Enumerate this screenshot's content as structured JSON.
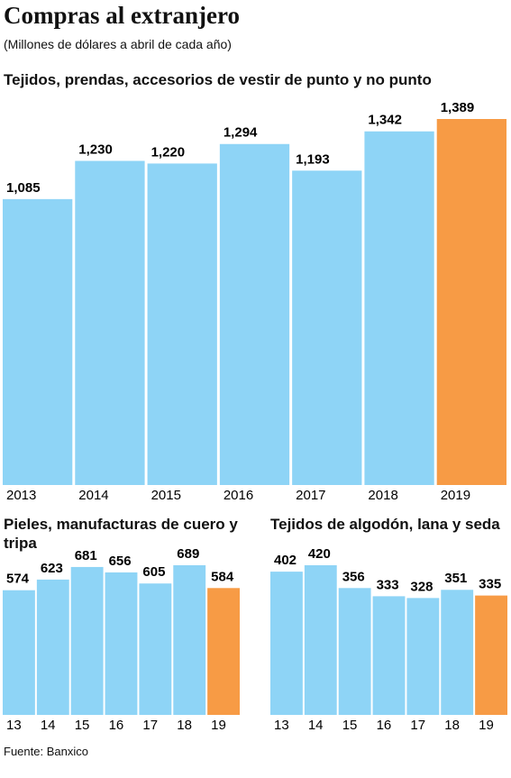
{
  "title": "Compras al extranjero",
  "subtitle": "(Millones de dólares a abril de cada año)",
  "source": "Fuente: Banxico",
  "chart_data": [
    {
      "type": "bar",
      "title": "Tejidos, prendas, accesorios de vestir de punto y no punto",
      "categories": [
        "2013",
        "2014",
        "2015",
        "2016",
        "2017",
        "2018",
        "2019"
      ],
      "values": [
        1085,
        1230,
        1220,
        1294,
        1193,
        1342,
        1389
      ],
      "value_labels": [
        "1,085",
        "1,230",
        "1,220",
        "1,294",
        "1,193",
        "1,342",
        "1,389"
      ],
      "colors": [
        "#8ed4f6",
        "#8ed4f6",
        "#8ed4f6",
        "#8ed4f6",
        "#8ed4f6",
        "#8ed4f6",
        "#f79b45"
      ]
    },
    {
      "type": "bar",
      "title": "Pieles, manufacturas de cuero y tripa",
      "categories": [
        "13",
        "14",
        "15",
        "16",
        "17",
        "18",
        "19"
      ],
      "values": [
        574,
        623,
        681,
        656,
        605,
        689,
        584
      ],
      "colors": [
        "#8ed4f6",
        "#8ed4f6",
        "#8ed4f6",
        "#8ed4f6",
        "#8ed4f6",
        "#8ed4f6",
        "#f79b45"
      ]
    },
    {
      "type": "bar",
      "title": "Tejidos de algodón, lana y seda",
      "categories": [
        "13",
        "14",
        "15",
        "16",
        "17",
        "18",
        "19"
      ],
      "values": [
        402,
        420,
        356,
        333,
        328,
        351,
        335
      ],
      "colors": [
        "#8ed4f6",
        "#8ed4f6",
        "#8ed4f6",
        "#8ed4f6",
        "#8ed4f6",
        "#8ed4f6",
        "#f79b45"
      ]
    }
  ]
}
